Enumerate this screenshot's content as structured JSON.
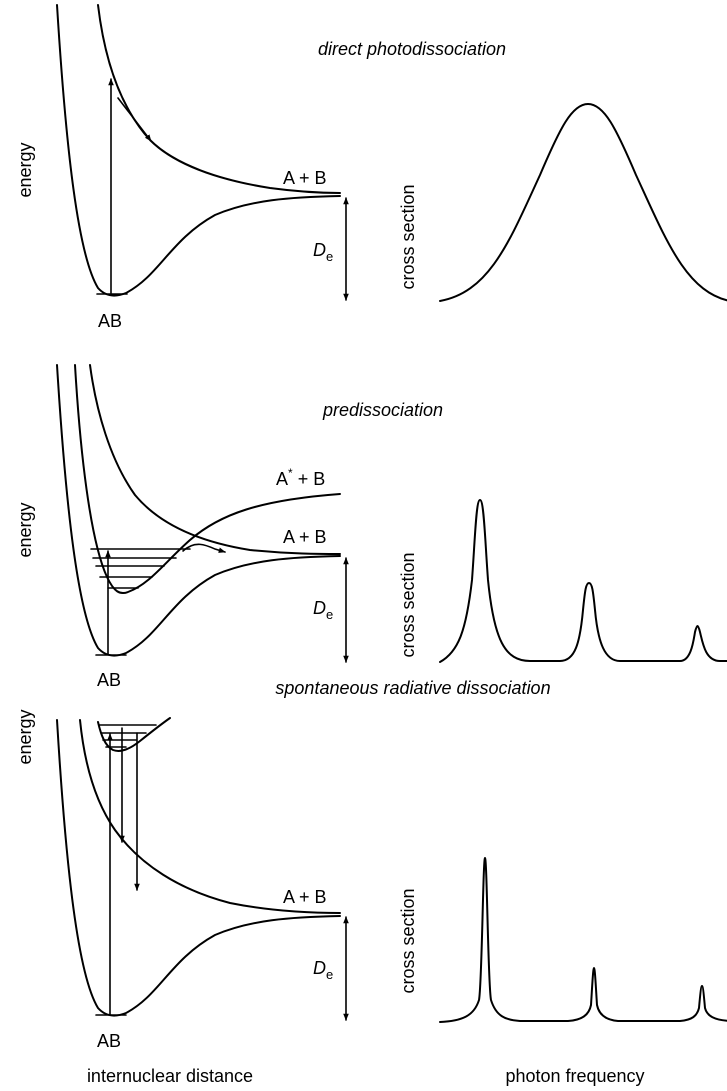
{
  "panels": [
    {
      "title": "direct photodissociation",
      "y_label": "energy",
      "cross_label": "cross section",
      "state_top": "A + B",
      "state_bottom": "AB",
      "de_italic": "D",
      "de_sub": "e"
    },
    {
      "title": "predissociation",
      "y_label": "energy",
      "cross_label": "cross section",
      "state_excited": "A",
      "state_excited_mark": "*",
      "state_excited_rest": " + B",
      "state_top": "A + B",
      "state_bottom": "AB",
      "de_italic": "D",
      "de_sub": "e"
    },
    {
      "title": "spontaneous radiative dissociation",
      "y_label": "energy",
      "cross_label": "cross section",
      "state_top": "A + B",
      "state_bottom": "AB",
      "de_italic": "D",
      "de_sub": "e"
    }
  ],
  "x_axis_left": "internuclear distance",
  "x_axis_right": "photon frequency",
  "colors": {
    "line": "#000000",
    "background": "#ffffff"
  }
}
